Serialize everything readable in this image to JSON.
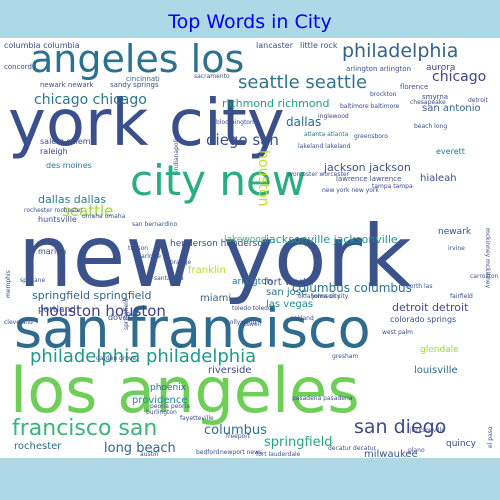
{
  "title": "Top Words in City",
  "colors": {
    "background": "#add8e6",
    "title": "#0000ff",
    "cloud_background": "#ffffff"
  },
  "words": [
    {
      "text": "york city",
      "color": "#3b4f8a"
    },
    {
      "text": "new york",
      "color": "#3b528b"
    },
    {
      "text": "san francisco",
      "color": "#2f6b8e"
    },
    {
      "text": "los angeles",
      "color": "#6ece58"
    },
    {
      "text": "angeles los",
      "color": "#2c728e"
    },
    {
      "text": "city new",
      "color": "#29af7f"
    },
    {
      "text": "philadelphia",
      "color": "#33638d"
    },
    {
      "text": "seattle seattle",
      "color": "#2a768e"
    },
    {
      "text": "chicago chicago",
      "color": "#2a788e"
    },
    {
      "text": "chicago",
      "color": "#414487"
    },
    {
      "text": "philadelphia philadelphia",
      "color": "#1f9a8a"
    },
    {
      "text": "francisco san",
      "color": "#35b779"
    },
    {
      "text": "houston houston",
      "color": "#433e85"
    },
    {
      "text": "san diego",
      "color": "#3e4989"
    },
    {
      "text": "columbus",
      "color": "#2d708e"
    },
    {
      "text": "springfield",
      "color": "#22a884"
    },
    {
      "text": "long beach",
      "color": "#33638d"
    },
    {
      "text": "seattle",
      "color": "#a0da39"
    },
    {
      "text": "dallas dallas",
      "color": "#287d8e"
    },
    {
      "text": "diego san",
      "color": "#3b528b"
    },
    {
      "text": "dallas",
      "color": "#31688e"
    },
    {
      "text": "columbus columbus",
      "color": "#2c728e"
    },
    {
      "text": "springfield springfield",
      "color": "#32658e"
    },
    {
      "text": "detroit detroit",
      "color": "#3e4a89"
    },
    {
      "text": "jacksonville jacksonville",
      "color": "#1f988b"
    },
    {
      "text": "jackson jackson",
      "color": "#3b528b"
    },
    {
      "text": "richmond richmond",
      "color": "#1fa188"
    },
    {
      "text": "houston",
      "color": "#c2df23"
    },
    {
      "text": "henderson henderson",
      "color": "#3e4c8a"
    },
    {
      "text": "san antonio",
      "color": "#33628d"
    },
    {
      "text": "fort worth",
      "color": "#3b528b"
    },
    {
      "text": "san jose",
      "color": "#2b748e"
    },
    {
      "text": "las vegas",
      "color": "#238a8d"
    },
    {
      "text": "louisville",
      "color": "#2f6c8e"
    },
    {
      "text": "milwaukee",
      "color": "#3b528b"
    },
    {
      "text": "riverside",
      "color": "#3e4989"
    },
    {
      "text": "miami",
      "color": "#33638d"
    },
    {
      "text": "arlington",
      "color": "#2d708e"
    },
    {
      "text": "franklin",
      "color": "#b5de2b"
    },
    {
      "text": "providence",
      "color": "#238a8d"
    },
    {
      "text": "phoenix",
      "color": "#31688e"
    },
    {
      "text": "rochester",
      "color": "#2e6e8e"
    },
    {
      "text": "hialeah",
      "color": "#3b528b"
    },
    {
      "text": "newark",
      "color": "#39558c"
    },
    {
      "text": "aurora",
      "color": "#3e4a89"
    },
    {
      "text": "lakewood",
      "color": "#35b779"
    },
    {
      "text": "everett",
      "color": "#2a788e"
    },
    {
      "text": "quincy",
      "color": "#3e4989"
    },
    {
      "text": "portland",
      "color": "#3b528b"
    },
    {
      "text": "marion",
      "color": "#3e4c8a"
    },
    {
      "text": "huntsville",
      "color": "#3b528b"
    },
    {
      "text": "raleigh",
      "color": "#3e4989"
    },
    {
      "text": "salem salem",
      "color": "#3e4c8a"
    },
    {
      "text": "des moines",
      "color": "#2a778e"
    },
    {
      "text": "dover",
      "color": "#3b528b"
    },
    {
      "text": "glendale",
      "color": "#a0da39"
    },
    {
      "text": "lancaster",
      "color": "#3e4c8a"
    },
    {
      "text": "little rock",
      "color": "#3b528b"
    },
    {
      "text": "concord",
      "color": "#3e4989"
    },
    {
      "text": "columbia columbia",
      "color": "#3e4c8a"
    },
    {
      "text": "newark newark",
      "color": "#3b528b"
    },
    {
      "text": "sandy springs",
      "color": "#3e4c8a"
    },
    {
      "text": "cincinnati",
      "color": "#31688e"
    },
    {
      "text": "arlington arlington",
      "color": "#3b528b"
    },
    {
      "text": "baltimore baltimore",
      "color": "#3e4c8a"
    },
    {
      "text": "florence",
      "color": "#3b528b"
    },
    {
      "text": "smyrna",
      "color": "#3e4989"
    },
    {
      "text": "chesapeake",
      "color": "#3e4c8a"
    },
    {
      "text": "detroit",
      "color": "#3b528b"
    },
    {
      "text": "beach long",
      "color": "#3e4c8a"
    },
    {
      "text": "atlanta atlanta",
      "color": "#2a788e"
    },
    {
      "text": "greensboro",
      "color": "#3e4c8a"
    },
    {
      "text": "lawrence lawrence",
      "color": "#3b528b"
    },
    {
      "text": "worcester worcester",
      "color": "#3e4c8a"
    },
    {
      "text": "tampa tampa",
      "color": "#3e4989"
    },
    {
      "text": "oklahoma city",
      "color": "#3b528b"
    },
    {
      "text": "johnson city",
      "color": "#3e4c8a"
    },
    {
      "text": "toledo toledo",
      "color": "#3e4989"
    },
    {
      "text": "colorado springs",
      "color": "#3b528b"
    },
    {
      "text": "fairfield",
      "color": "#3e4c8a"
    },
    {
      "text": "jacksonville",
      "color": "#3b528b"
    },
    {
      "text": "new york new york",
      "color": "#3e4c8a"
    },
    {
      "text": "oakland",
      "color": "#3e4989"
    },
    {
      "text": "roswell",
      "color": "#3b528b"
    },
    {
      "text": "freeport",
      "color": "#3e4c8a"
    },
    {
      "text": "decatur decatur",
      "color": "#3b528b"
    },
    {
      "text": "plano",
      "color": "#3e4c8a"
    },
    {
      "text": "pasadena pasadena",
      "color": "#3e4989"
    },
    {
      "text": "peoria peoria",
      "color": "#3b528b"
    },
    {
      "text": "burlington",
      "color": "#3e4c8a"
    },
    {
      "text": "newport news",
      "color": "#3e4989"
    },
    {
      "text": "fort lauderdale",
      "color": "#3b528b"
    },
    {
      "text": "fayetteville",
      "color": "#3e4c8a"
    },
    {
      "text": "bedford",
      "color": "#3b528b"
    },
    {
      "text": "austin",
      "color": "#3e4c8a"
    },
    {
      "text": "charlotte",
      "color": "#3b528b"
    },
    {
      "text": "orange",
      "color": "#3e4c8a"
    },
    {
      "text": "santa ana",
      "color": "#3b528b"
    },
    {
      "text": "bloomington",
      "color": "#3e4c8a"
    },
    {
      "text": "sacramento",
      "color": "#3b528b"
    },
    {
      "text": "brockton",
      "color": "#3e4c8a"
    },
    {
      "text": "lakeland lakeland",
      "color": "#3b528b"
    },
    {
      "text": "mckinney mckinney",
      "color": "#3e4c8a"
    },
    {
      "text": "springfield",
      "color": "#3b528b"
    },
    {
      "text": "indianapolis",
      "color": "#3e4c8a"
    },
    {
      "text": "san bernardino",
      "color": "#3b528b"
    },
    {
      "text": "rochester rochester",
      "color": "#3e4c8a"
    },
    {
      "text": "omaha omaha",
      "color": "#3b528b"
    },
    {
      "text": "tucson",
      "color": "#3e4c8a"
    },
    {
      "text": "north las",
      "color": "#3b528b"
    },
    {
      "text": "irvine",
      "color": "#3e4c8a"
    },
    {
      "text": "carrollton",
      "color": "#3b528b"
    },
    {
      "text": "el paso",
      "color": "#3e4c8a"
    },
    {
      "text": "spokane",
      "color": "#3b528b"
    },
    {
      "text": "inglewood",
      "color": "#3e4c8a"
    },
    {
      "text": "memphis",
      "color": "#3b528b"
    },
    {
      "text": "cleveland",
      "color": "#3e4c8a"
    },
    {
      "text": "hollywood",
      "color": "#3b528b"
    },
    {
      "text": "west palm",
      "color": "#3e4c8a"
    },
    {
      "text": "gresham",
      "color": "#3b528b"
    },
    {
      "text": "garden grove",
      "color": "#3e4c8a"
    }
  ]
}
